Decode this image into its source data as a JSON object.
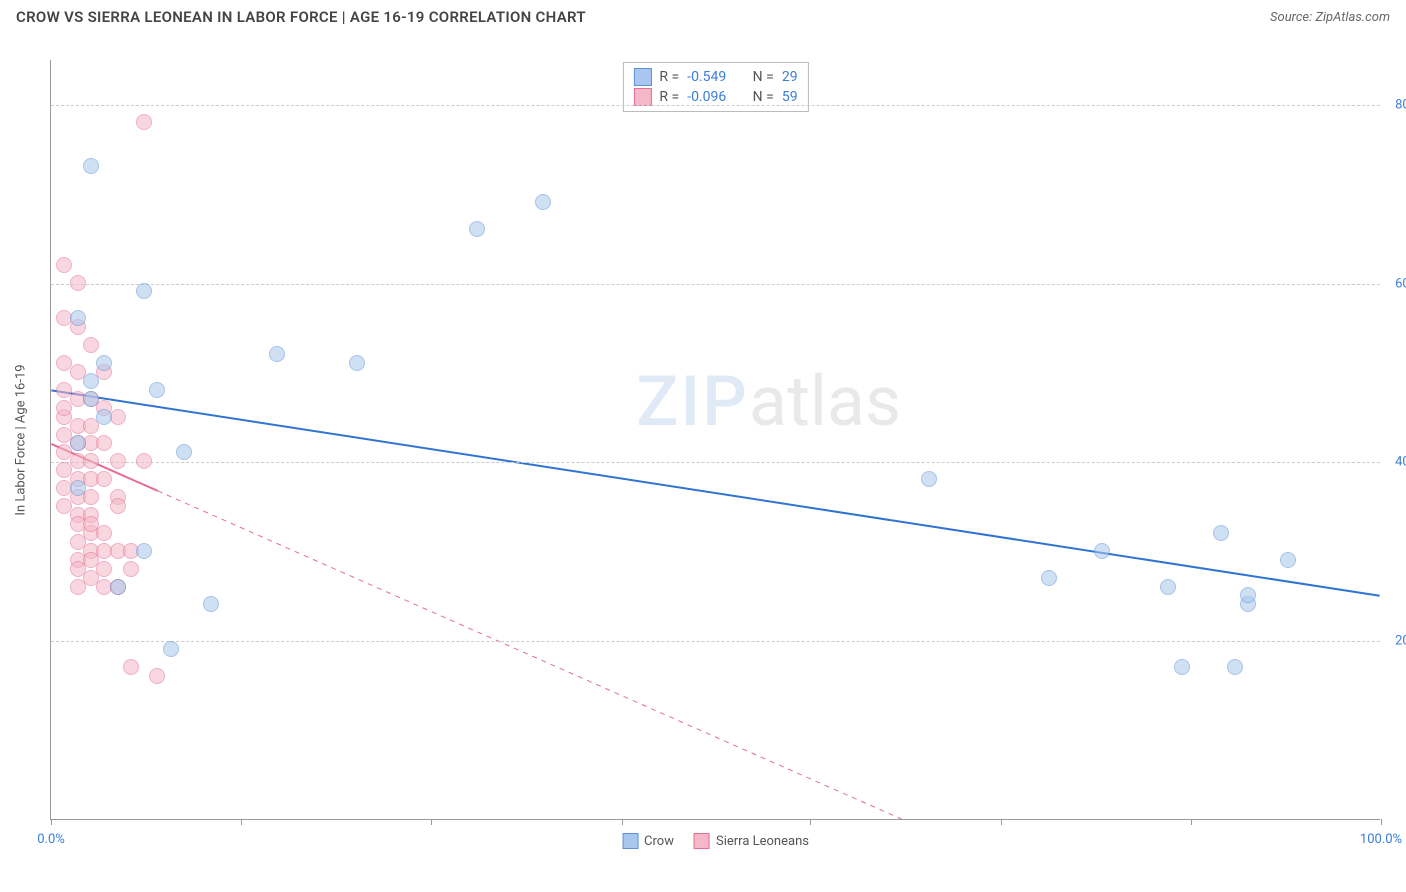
{
  "header": {
    "title": "CROW VS SIERRA LEONEAN IN LABOR FORCE | AGE 16-19 CORRELATION CHART",
    "source_label": "Source:",
    "source_name": "ZipAtlas.com"
  },
  "chart": {
    "type": "scatter",
    "y_axis_label": "In Labor Force | Age 16-19",
    "x_range": [
      0,
      100
    ],
    "y_range": [
      0,
      85
    ],
    "y_gridlines": [
      20,
      40,
      60,
      80
    ],
    "y_tick_labels": [
      "20.0%",
      "40.0%",
      "60.0%",
      "80.0%"
    ],
    "x_ticks": [
      0,
      14.3,
      28.6,
      42.9,
      57.1,
      71.4,
      85.7,
      100
    ],
    "x_tick_labels": {
      "0": "0.0%",
      "100": "100.0%"
    },
    "background_color": "#ffffff",
    "grid_color": "#cccccc",
    "axis_color": "#999999",
    "tick_label_color": "#3b7dd8",
    "marker_radius": 8,
    "marker_stroke_width": 1,
    "watermark": {
      "text_a": "ZIP",
      "text_b": "atlas"
    },
    "series": [
      {
        "name": "Crow",
        "color_fill": "#a9c7ee",
        "color_stroke": "#5d93d4",
        "fill_opacity": 0.55,
        "stats": {
          "R": "-0.549",
          "N": "29"
        },
        "trend": {
          "x1": 0,
          "y1": 48,
          "x2": 100,
          "y2": 25,
          "solid_to_x": 100,
          "line_color": "#2f74d0",
          "line_width": 2
        },
        "points": [
          [
            3,
            73
          ],
          [
            7,
            59
          ],
          [
            2,
            56
          ],
          [
            8,
            48
          ],
          [
            3,
            49
          ],
          [
            3,
            47
          ],
          [
            4,
            51
          ],
          [
            17,
            52
          ],
          [
            23,
            51
          ],
          [
            10,
            41
          ],
          [
            7,
            30
          ],
          [
            5,
            26
          ],
          [
            12,
            24
          ],
          [
            9,
            19
          ],
          [
            32,
            66
          ],
          [
            37,
            69
          ],
          [
            66,
            38
          ],
          [
            79,
            30
          ],
          [
            75,
            27
          ],
          [
            84,
            26
          ],
          [
            88,
            32
          ],
          [
            93,
            29
          ],
          [
            90,
            24
          ],
          [
            90,
            25
          ],
          [
            85,
            17
          ],
          [
            89,
            17
          ],
          [
            2,
            37
          ],
          [
            2,
            42
          ],
          [
            4,
            45
          ]
        ]
      },
      {
        "name": "Sierra Leoneans",
        "color_fill": "#f4b8c8",
        "color_stroke": "#e46f93",
        "fill_opacity": 0.55,
        "stats": {
          "R": "-0.096",
          "N": "59"
        },
        "trend": {
          "x1": 0,
          "y1": 42,
          "x2": 64,
          "y2": 0,
          "solid_to_x": 8,
          "line_color": "#e46f93",
          "line_width": 2
        },
        "points": [
          [
            7,
            78
          ],
          [
            1,
            62
          ],
          [
            2,
            60
          ],
          [
            1,
            56
          ],
          [
            2,
            55
          ],
          [
            3,
            53
          ],
          [
            1,
            51
          ],
          [
            2,
            50
          ],
          [
            4,
            50
          ],
          [
            1,
            48
          ],
          [
            2,
            47
          ],
          [
            3,
            47
          ],
          [
            4,
            46
          ],
          [
            1,
            45
          ],
          [
            2,
            44
          ],
          [
            3,
            44
          ],
          [
            5,
            45
          ],
          [
            1,
            43
          ],
          [
            2,
            42
          ],
          [
            3,
            42
          ],
          [
            4,
            42
          ],
          [
            1,
            41
          ],
          [
            2,
            40
          ],
          [
            3,
            40
          ],
          [
            5,
            40
          ],
          [
            7,
            40
          ],
          [
            1,
            39
          ],
          [
            2,
            38
          ],
          [
            3,
            38
          ],
          [
            4,
            38
          ],
          [
            1,
            37
          ],
          [
            2,
            36
          ],
          [
            3,
            36
          ],
          [
            5,
            36
          ],
          [
            1,
            35
          ],
          [
            2,
            34
          ],
          [
            3,
            34
          ],
          [
            2,
            33
          ],
          [
            3,
            32
          ],
          [
            4,
            32
          ],
          [
            2,
            31
          ],
          [
            3,
            30
          ],
          [
            4,
            30
          ],
          [
            5,
            30
          ],
          [
            6,
            30
          ],
          [
            2,
            29
          ],
          [
            3,
            29
          ],
          [
            2,
            28
          ],
          [
            4,
            28
          ],
          [
            6,
            28
          ],
          [
            3,
            27
          ],
          [
            2,
            26
          ],
          [
            4,
            26
          ],
          [
            5,
            26
          ],
          [
            3,
            33
          ],
          [
            6,
            17
          ],
          [
            8,
            16
          ],
          [
            5,
            35
          ],
          [
            1,
            46
          ]
        ]
      }
    ],
    "legend_bottom": [
      {
        "label": "Crow",
        "fill": "#a9c7ee",
        "stroke": "#5d93d4"
      },
      {
        "label": "Sierra Leoneans",
        "fill": "#f4b8c8",
        "stroke": "#e46f93"
      }
    ]
  }
}
